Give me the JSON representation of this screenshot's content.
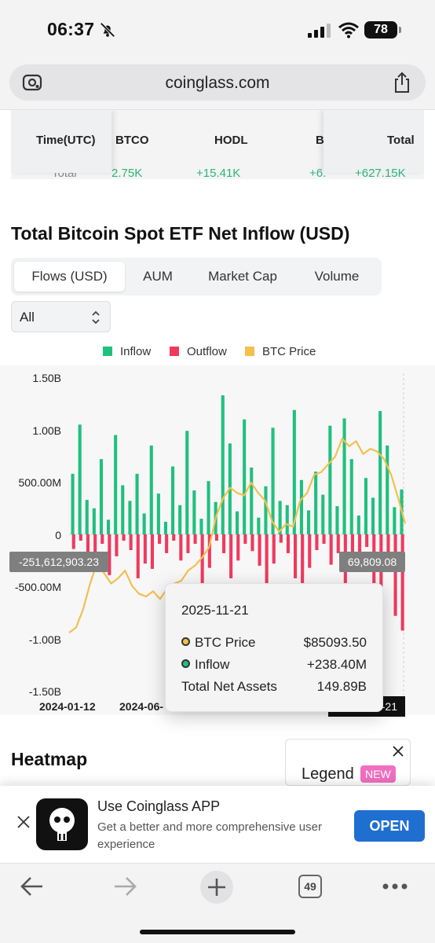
{
  "status": {
    "time": "06:37",
    "battery": "78"
  },
  "browser": {
    "url": "coinglass.com",
    "tabs_count": "49"
  },
  "table": {
    "headers": [
      "Time(UTC)",
      "BTCO",
      "HODL",
      "B",
      "Total"
    ],
    "cut_row": {
      "first": "Total",
      "btco": "2.75K",
      "hodl": "+15.41K",
      "b": "+6.",
      "total": "+627.15K"
    }
  },
  "section": {
    "title": "Total Bitcoin Spot ETF Net Inflow (USD)"
  },
  "tabs": [
    {
      "label": "Flows (USD)",
      "active": true
    },
    {
      "label": "AUM",
      "active": false
    },
    {
      "label": "Market Cap",
      "active": false
    },
    {
      "label": "Volume",
      "active": false
    }
  ],
  "select": {
    "value": "All"
  },
  "colors": {
    "inflow": "#1fc07e",
    "outflow": "#ef3a5d",
    "btc_price": "#f3c04d"
  },
  "chart_data": {
    "type": "bar",
    "series": [
      {
        "name": "Inflow",
        "values": [
          580,
          1050,
          330,
          250,
          720,
          140,
          950,
          470,
          320,
          580,
          200,
          850,
          390,
          120,
          650,
          280,
          990,
          420,
          150,
          510,
          310,
          1330,
          870,
          220,
          1100,
          640,
          160,
          460,
          1020,
          320,
          280,
          1190,
          520,
          230,
          600,
          380,
          1040,
          270,
          1110,
          720,
          180,
          540,
          350,
          1180,
          850,
          260,
          430
        ]
      },
      {
        "name": "Outflow",
        "values": [
          -140,
          -60,
          -280,
          -180,
          -90,
          -390,
          -210,
          -60,
          -150,
          -420,
          -280,
          -330,
          -90,
          -180,
          -60,
          -250,
          -180,
          -90,
          -520,
          -320,
          -60,
          -180,
          -420,
          -250,
          -90,
          -160,
          -300,
          -600,
          -280,
          -80,
          -180,
          -420,
          -700,
          -320,
          -150,
          -90,
          -290,
          -180,
          -540,
          -230,
          -360,
          -120,
          -480,
          -650,
          -330,
          -780,
          -920
        ]
      },
      {
        "name": "BTC Price",
        "values": [
          43000,
          45000,
          52000,
          62000,
          70000,
          66000,
          62000,
          64000,
          67000,
          61000,
          58000,
          57000,
          59000,
          56000,
          60000,
          62000,
          63000,
          67000,
          69000,
          72000,
          76000,
          88000,
          95000,
          99000,
          97000,
          96000,
          101000,
          97000,
          94000,
          86000,
          82000,
          85000,
          84000,
          94000,
          97000,
          104000,
          105000,
          108000,
          111000,
          118000,
          115000,
          117000,
          112000,
          114000,
          113000,
          110000,
          104000,
          95000,
          85093.5
        ]
      }
    ],
    "y_axis": {
      "ticks": [
        "1.50B",
        "1.00B",
        "500.00M",
        "0",
        "-500.00M",
        "-1.00B",
        "-1.50B"
      ],
      "range": [
        -1500000000,
        1500000000
      ]
    },
    "x_axis": {
      "ticks": [
        "2024-01-12",
        "2024-06-",
        "-21"
      ],
      "range": [
        "2024-01-12",
        "2025-11-21"
      ]
    },
    "pointer_left": "-251,612,903.23",
    "pointer_right": "69,809.08",
    "date_flag": "-21"
  },
  "legend": {
    "inflow": "Inflow",
    "outflow": "Outflow",
    "btc_price": "BTC Price"
  },
  "tooltip": {
    "date": "2025-11-21",
    "rows": [
      {
        "label": "BTC Price",
        "value": "$85093.50"
      },
      {
        "label": "Inflow",
        "value": "+238.40M"
      },
      {
        "label": "Total Net Assets",
        "value": "149.89B"
      }
    ]
  },
  "heatmap": {
    "title": "Heatmap",
    "legend_label": "Legend",
    "new_badge": "NEW"
  },
  "app_banner": {
    "title": "Use Coinglass APP",
    "desc": "Get a better and more comprehensive user experience",
    "open": "OPEN"
  }
}
